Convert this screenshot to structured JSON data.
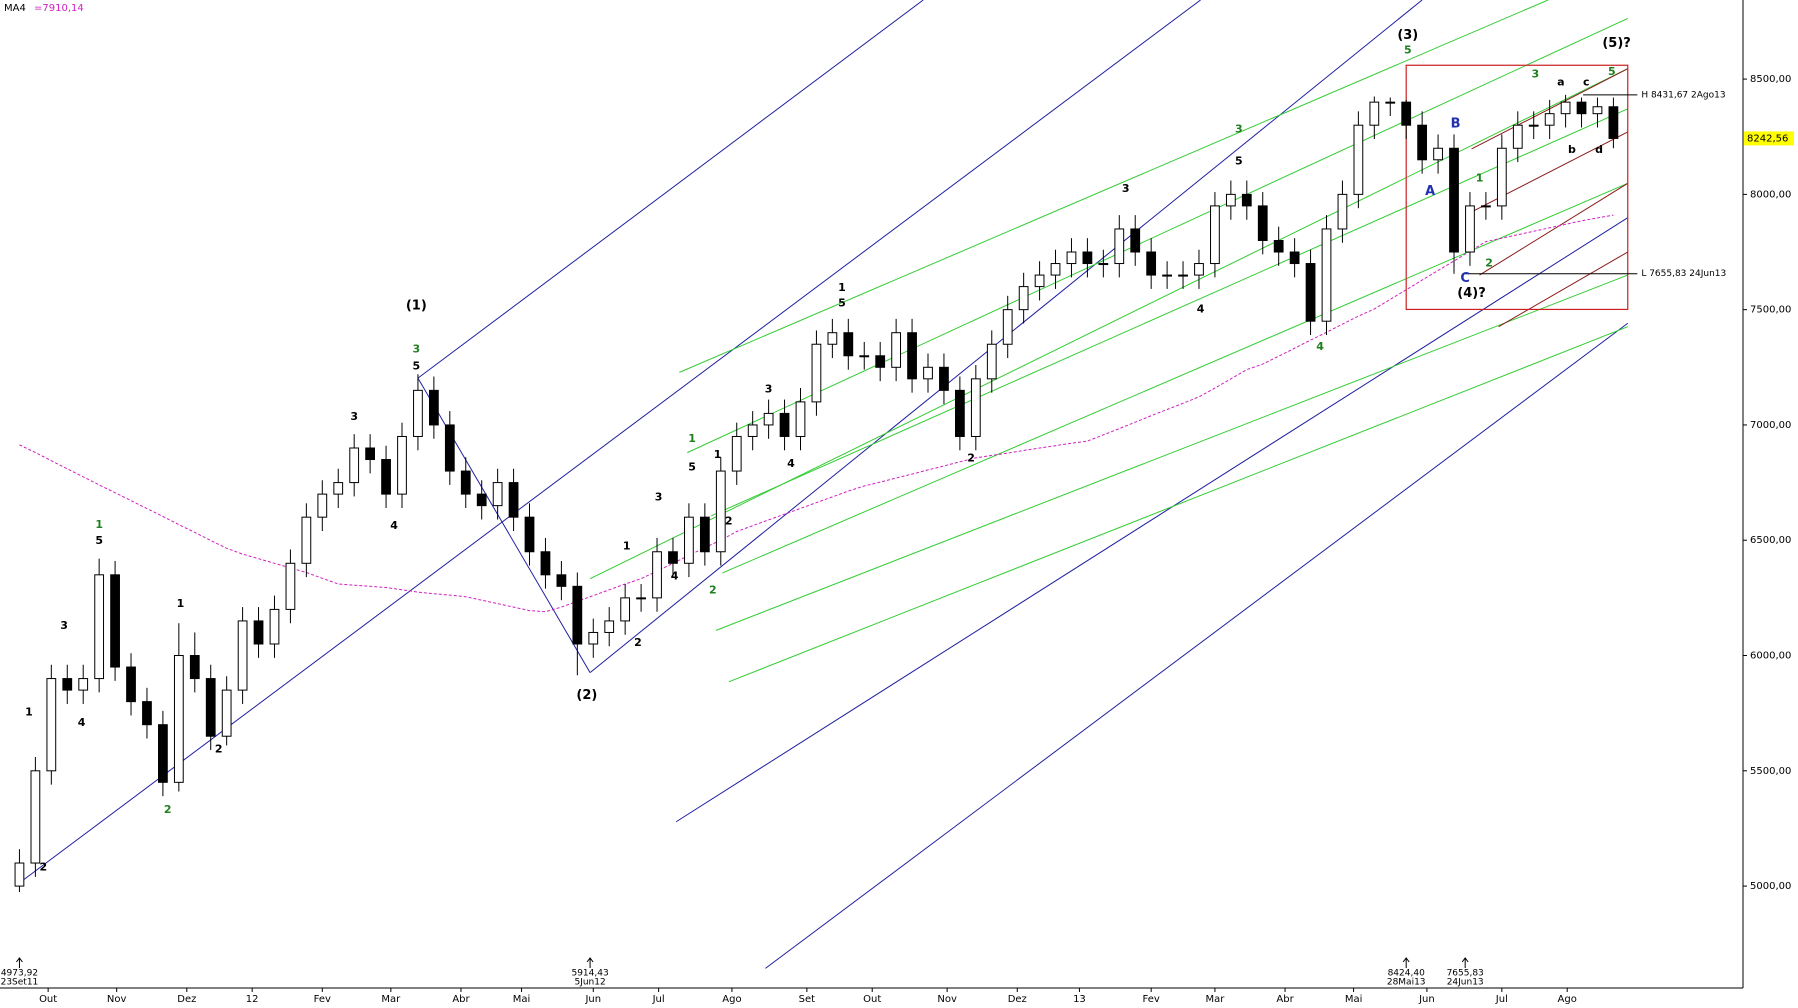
{
  "chart_data": {
    "type": "candlestick",
    "ma": {
      "name": "MA4",
      "current_label": "=7910,14",
      "color": "#d020c0",
      "values": [
        6914,
        6880,
        6845,
        6810,
        6775,
        6740,
        6706,
        6672,
        6637,
        6603,
        6568,
        6534,
        6499,
        6465,
        6440,
        6420,
        6400,
        6380,
        6360,
        6335,
        6310,
        6305,
        6300,
        6295,
        6285,
        6275,
        6268,
        6262,
        6255,
        6240,
        6225,
        6210,
        6195,
        6190,
        6210,
        6235,
        6260,
        6285,
        6310,
        6333,
        6366,
        6400,
        6434,
        6468,
        6500,
        6538,
        6563,
        6588,
        6613,
        6638,
        6663,
        6688,
        6713,
        6735,
        6752,
        6770,
        6787,
        6805,
        6822,
        6840,
        6857,
        6868,
        6878,
        6889,
        6900,
        6910,
        6921,
        6930,
        6957,
        6984,
        7012,
        7040,
        7067,
        7094,
        7122,
        7160,
        7200,
        7240,
        7264,
        7298,
        7333,
        7368,
        7402,
        7437,
        7472,
        7503,
        7545,
        7586,
        7628,
        7670,
        7711,
        7753,
        7795,
        7810,
        7825,
        7840,
        7855,
        7870,
        7885,
        7898,
        7910.14
      ]
    },
    "open": [
      5000,
      5100,
      5500,
      5900,
      5850,
      5900,
      6350,
      5950,
      5800,
      5700,
      5450,
      6000,
      5900,
      5650,
      5850,
      6150,
      6050,
      6200,
      6400,
      6600,
      6700,
      6750,
      6900,
      6850,
      6700,
      6950,
      7150,
      7000,
      6800,
      6700,
      6650,
      6750,
      6600,
      6450,
      6350,
      6300,
      6050,
      6100,
      6150,
      6250,
      6250,
      6450,
      6400,
      6600,
      6450,
      6800,
      6950,
      7000,
      7050,
      6950,
      7100,
      7350,
      7400,
      7300,
      7300,
      7250,
      7400,
      7200,
      7250,
      7150,
      6950,
      7200,
      7350,
      7500,
      7600,
      7650,
      7700,
      7750,
      7700,
      7700,
      7850,
      7750,
      7650,
      7650,
      7650,
      7700,
      7950,
      8000,
      7950,
      7800,
      7750,
      7700,
      7450,
      7850,
      8000,
      8300,
      8400,
      8400,
      8300,
      8150,
      8200,
      7750,
      7950,
      7950,
      8200,
      8300,
      8300,
      8350,
      8400,
      8350,
      8380
    ],
    "high": [
      5160,
      5560,
      5960,
      5960,
      5960,
      6420,
      6410,
      6010,
      5860,
      5760,
      6140,
      6100,
      5960,
      5910,
      6210,
      6210,
      6260,
      6460,
      6660,
      6760,
      6810,
      6960,
      6960,
      6910,
      7010,
      7220,
      7210,
      7060,
      6860,
      6760,
      6810,
      6810,
      6660,
      6510,
      6410,
      6360,
      6160,
      6210,
      6310,
      6310,
      6510,
      6510,
      6660,
      6660,
      6860,
      7010,
      7060,
      7110,
      7110,
      7160,
      7410,
      7460,
      7460,
      7360,
      7360,
      7460,
      7460,
      7310,
      7310,
      7210,
      7260,
      7410,
      7560,
      7660,
      7710,
      7760,
      7810,
      7810,
      7760,
      7910,
      7910,
      7810,
      7710,
      7710,
      7760,
      8010,
      8060,
      8060,
      8010,
      7860,
      7810,
      7760,
      7910,
      8060,
      8360,
      8424.4,
      8420,
      8410,
      8360,
      8260,
      8260,
      8010,
      8010,
      8260,
      8360,
      8360,
      8410,
      8431.67,
      8420,
      8420,
      8420
    ],
    "low": [
      4973.92,
      5040,
      5440,
      5790,
      5790,
      5840,
      5890,
      5740,
      5640,
      5390,
      5410,
      5840,
      5590,
      5610,
      5790,
      5990,
      5990,
      6140,
      6340,
      6540,
      6640,
      6690,
      6790,
      6640,
      6640,
      6890,
      6940,
      6740,
      6640,
      6590,
      6590,
      6540,
      6390,
      6290,
      6240,
      5914.43,
      5990,
      6040,
      6090,
      6190,
      6190,
      6340,
      6340,
      6390,
      6390,
      6740,
      6890,
      6940,
      6890,
      6890,
      7040,
      7290,
      7240,
      7240,
      7190,
      7190,
      7140,
      7140,
      7090,
      6890,
      6890,
      7140,
      7290,
      7440,
      7540,
      7590,
      7640,
      7640,
      7640,
      7640,
      7690,
      7590,
      7590,
      7590,
      7590,
      7640,
      7890,
      7890,
      7740,
      7690,
      7640,
      7390,
      7390,
      7790,
      7940,
      8240,
      8340,
      8240,
      8090,
      8090,
      7655.83,
      7690,
      7890,
      7890,
      8140,
      8240,
      8240,
      8290,
      8290,
      8290,
      8200
    ],
    "close": [
      5100,
      5500,
      5900,
      5850,
      5900,
      6350,
      5950,
      5800,
      5700,
      5450,
      6000,
      5900,
      5650,
      5850,
      6150,
      6050,
      6200,
      6400,
      6600,
      6700,
      6750,
      6900,
      6850,
      6700,
      6950,
      7150,
      7000,
      6800,
      6700,
      6650,
      6750,
      6600,
      6450,
      6350,
      6300,
      6050,
      6100,
      6150,
      6250,
      6250,
      6450,
      6400,
      6600,
      6450,
      6800,
      6950,
      7000,
      7050,
      6950,
      7100,
      7350,
      7400,
      7300,
      7300,
      7250,
      7400,
      7200,
      7250,
      7150,
      6950,
      7200,
      7350,
      7500,
      7600,
      7650,
      7700,
      7750,
      7700,
      7700,
      7850,
      7750,
      7650,
      7650,
      7650,
      7700,
      7950,
      8000,
      7950,
      7800,
      7750,
      7700,
      7450,
      7850,
      8000,
      8300,
      8400,
      8400,
      8300,
      8150,
      8200,
      7750,
      7950,
      7950,
      8200,
      8300,
      8300,
      8350,
      8400,
      8350,
      8380,
      8242.56
    ],
    "last_price": {
      "value": 8242.56,
      "label": "8242,56"
    },
    "xlim": [
      -1.22,
      108.13
    ],
    "ylim": [
      4558,
      8843
    ],
    "xticks": [
      {
        "value": 1.8,
        "label": "Out"
      },
      {
        "value": 6.1,
        "label": "Nov"
      },
      {
        "value": 10.5,
        "label": "Dez"
      },
      {
        "value": 14.6,
        "label": "12"
      },
      {
        "value": 19.0,
        "label": "Fev"
      },
      {
        "value": 23.3,
        "label": "Mar"
      },
      {
        "value": 27.7,
        "label": "Abr"
      },
      {
        "value": 31.5,
        "label": "Mai"
      },
      {
        "value": 36.0,
        "label": "Jun"
      },
      {
        "value": 40.1,
        "label": "Jul"
      },
      {
        "value": 44.7,
        "label": "Ago"
      },
      {
        "value": 49.4,
        "label": "Set"
      },
      {
        "value": 53.5,
        "label": "Out"
      },
      {
        "value": 58.2,
        "label": "Nov"
      },
      {
        "value": 62.6,
        "label": "Dez"
      },
      {
        "value": 66.5,
        "label": "13"
      },
      {
        "value": 71.0,
        "label": "Fev"
      },
      {
        "value": 75.0,
        "label": "Mar"
      },
      {
        "value": 79.4,
        "label": "Abr"
      },
      {
        "value": 83.7,
        "label": "Mai"
      },
      {
        "value": 88.3,
        "label": "Jun"
      },
      {
        "value": 93.0,
        "label": "Jul"
      },
      {
        "value": 97.1,
        "label": "Ago"
      }
    ],
    "yticks": [
      {
        "value": 5000,
        "label": "5000,00"
      },
      {
        "value": 5500,
        "label": "5500,00"
      },
      {
        "value": 6000,
        "label": "6000,00"
      },
      {
        "value": 6500,
        "label": "6500,00"
      },
      {
        "value": 7000,
        "label": "7000,00"
      },
      {
        "value": 7500,
        "label": "7500,00"
      },
      {
        "value": 8000,
        "label": "8000,00"
      },
      {
        "value": 8500,
        "label": "8500,00"
      }
    ],
    "trendlines": [
      {
        "x1": 0,
        "y1": 5014,
        "x2": 74.1,
        "y2": 8843,
        "color": "#2020a0"
      },
      {
        "x1": 25.0,
        "y1": 7203,
        "x2": 56.7,
        "y2": 8843,
        "color": "#2020a0"
      },
      {
        "x1": 35.8,
        "y1": 5926,
        "x2": 88.0,
        "y2": 8843,
        "color": "#2020a0"
      },
      {
        "x1": 25.0,
        "y1": 7203,
        "x2": 35.8,
        "y2": 5926,
        "color": "#2020a0"
      },
      {
        "x1": 41.2,
        "y1": 5279,
        "x2": 100.9,
        "y2": 7899,
        "color": "#2020a0"
      },
      {
        "x1": 46.8,
        "y1": 4643,
        "x2": 100.9,
        "y2": 7441,
        "color": "#2020a0"
      },
      {
        "x1": 41.4,
        "y1": 7228,
        "x2": 95.9,
        "y2": 8843,
        "color": "#33cc33"
      },
      {
        "x1": 41.9,
        "y1": 6880,
        "x2": 100.9,
        "y2": 8763,
        "color": "#33cc33"
      },
      {
        "x1": 43.4,
        "y1": 6606,
        "x2": 100.9,
        "y2": 8371,
        "color": "#33cc33"
      },
      {
        "x1": 35.8,
        "y1": 6333,
        "x2": 100.9,
        "y2": 8545,
        "color": "#33cc33"
      },
      {
        "x1": 44.1,
        "y1": 6358,
        "x2": 100.9,
        "y2": 8048,
        "color": "#33cc33"
      },
      {
        "x1": 43.7,
        "y1": 6109,
        "x2": 100.9,
        "y2": 7650,
        "color": "#33cc33"
      },
      {
        "x1": 44.5,
        "y1": 5886,
        "x2": 100.9,
        "y2": 7426,
        "color": "#33cc33"
      },
      {
        "x1": 91.1,
        "y1": 8197,
        "x2": 100.9,
        "y2": 8545,
        "color": "#8b1a1a"
      },
      {
        "x1": 91.1,
        "y1": 7924,
        "x2": 100.9,
        "y2": 8271,
        "color": "#8b1a1a"
      },
      {
        "x1": 91.6,
        "y1": 7650,
        "x2": 100.9,
        "y2": 8048,
        "color": "#8b1a1a"
      },
      {
        "x1": 92.8,
        "y1": 7426,
        "x2": 100.9,
        "y2": 7750,
        "color": "#8b1a1a"
      }
    ],
    "box": {
      "x1": 87.0,
      "y1": 8560,
      "x2": 100.9,
      "y2": 7501,
      "color": "#cc2020"
    },
    "levels": [
      {
        "label": "H 8431,67 2Ago13",
        "value": 8431.67,
        "x1": 98.1,
        "x2": 101.5
      },
      {
        "label": "L 7655,83 24Jun13",
        "value": 7655.83,
        "x1": 90.7,
        "x2": 101.5
      }
    ],
    "markers": [
      {
        "x": 0,
        "label": "4973,92",
        "date": "23Set11"
      },
      {
        "x": 35.8,
        "label": "5914,43",
        "date": "5Jun12"
      },
      {
        "x": 87.0,
        "label": "8424,40",
        "date": "28Mai13"
      },
      {
        "x": 90.7,
        "label": "7655,83",
        "date": "24Jun13"
      }
    ],
    "annotations": [
      {
        "text": "(1)",
        "x": 24.9,
        "y": 7516,
        "color": "#000000"
      },
      {
        "text": "3",
        "x": 24.9,
        "y": 7327,
        "color": "#208020"
      },
      {
        "text": "5",
        "x": 24.9,
        "y": 7253,
        "color": "#000000"
      },
      {
        "text": "(2)",
        "x": 35.6,
        "y": 5826,
        "color": "#000000"
      },
      {
        "text": "(3)",
        "x": 87.1,
        "y": 8689,
        "color": "#000000"
      },
      {
        "text": "5",
        "x": 87.1,
        "y": 8624,
        "color": "#208020"
      },
      {
        "text": "(5)?",
        "x": 100.2,
        "y": 8654,
        "color": "#000000"
      },
      {
        "text": "(4)?",
        "x": 91.1,
        "y": 7571,
        "color": "#000000"
      },
      {
        "text": "1",
        "x": 5.0,
        "y": 6567,
        "color": "#208020"
      },
      {
        "text": "5",
        "x": 5.0,
        "y": 6497,
        "color": "#000000"
      },
      {
        "text": "2",
        "x": 9.3,
        "y": 5329,
        "color": "#208020"
      },
      {
        "text": "2",
        "x": 1.5,
        "y": 5081,
        "color": "#000000"
      },
      {
        "text": "1",
        "x": 0.6,
        "y": 5752,
        "color": "#000000"
      },
      {
        "text": "3",
        "x": 2.8,
        "y": 6129,
        "color": "#000000"
      },
      {
        "text": "4",
        "x": 3.9,
        "y": 5707,
        "color": "#000000"
      },
      {
        "text": "1",
        "x": 10.1,
        "y": 6224,
        "color": "#000000"
      },
      {
        "text": "2",
        "x": 12.5,
        "y": 5593,
        "color": "#000000"
      },
      {
        "text": "3",
        "x": 21.0,
        "y": 7034,
        "color": "#000000"
      },
      {
        "text": "4",
        "x": 23.5,
        "y": 6562,
        "color": "#000000"
      },
      {
        "text": "1",
        "x": 38.1,
        "y": 6472,
        "color": "#000000"
      },
      {
        "text": "3",
        "x": 40.1,
        "y": 6686,
        "color": "#000000"
      },
      {
        "text": "2",
        "x": 38.8,
        "y": 6055,
        "color": "#000000"
      },
      {
        "text": "4",
        "x": 41.1,
        "y": 6343,
        "color": "#000000"
      },
      {
        "text": "1",
        "x": 42.2,
        "y": 6939,
        "color": "#208020"
      },
      {
        "text": "5",
        "x": 42.2,
        "y": 6815,
        "color": "#000000"
      },
      {
        "text": "2",
        "x": 43.5,
        "y": 6283,
        "color": "#208020"
      },
      {
        "text": "2",
        "x": 44.5,
        "y": 6582,
        "color": "#000000"
      },
      {
        "text": "1",
        "x": 43.8,
        "y": 6870,
        "color": "#000000"
      },
      {
        "text": "3",
        "x": 47.0,
        "y": 7153,
        "color": "#000000"
      },
      {
        "text": "4",
        "x": 48.4,
        "y": 6830,
        "color": "#000000"
      },
      {
        "text": "1",
        "x": 51.6,
        "y": 7595,
        "color": "#000000"
      },
      {
        "text": "5",
        "x": 51.6,
        "y": 7526,
        "color": "#000000"
      },
      {
        "text": "2",
        "x": 59.7,
        "y": 6855,
        "color": "#000000"
      },
      {
        "text": "3",
        "x": 69.4,
        "y": 8023,
        "color": "#000000"
      },
      {
        "text": "3",
        "x": 76.5,
        "y": 8281,
        "color": "#208020"
      },
      {
        "text": "5",
        "x": 76.5,
        "y": 8142,
        "color": "#000000"
      },
      {
        "text": "4",
        "x": 74.1,
        "y": 7501,
        "color": "#000000"
      },
      {
        "text": "4",
        "x": 81.6,
        "y": 7337,
        "color": "#208020"
      },
      {
        "text": "A",
        "x": 88.5,
        "y": 8013,
        "color": "#2030b0"
      },
      {
        "text": "B",
        "x": 90.1,
        "y": 8306,
        "color": "#2030b0"
      },
      {
        "text": "C",
        "x": 90.7,
        "y": 7635,
        "color": "#2030b0"
      },
      {
        "text": "1",
        "x": 91.6,
        "y": 8068,
        "color": "#208020"
      },
      {
        "text": "2",
        "x": 92.2,
        "y": 7700,
        "color": "#208020"
      },
      {
        "text": "3",
        "x": 95.1,
        "y": 8520,
        "color": "#208020"
      },
      {
        "text": "5",
        "x": 99.9,
        "y": 8530,
        "color": "#208020"
      },
      {
        "text": "a",
        "x": 96.7,
        "y": 8485,
        "color": "#000000"
      },
      {
        "text": "c",
        "x": 98.3,
        "y": 8485,
        "color": "#000000"
      },
      {
        "text": "b",
        "x": 97.4,
        "y": 8192,
        "color": "#000000"
      },
      {
        "text": "d",
        "x": 99.1,
        "y": 8192,
        "color": "#000000"
      }
    ]
  }
}
